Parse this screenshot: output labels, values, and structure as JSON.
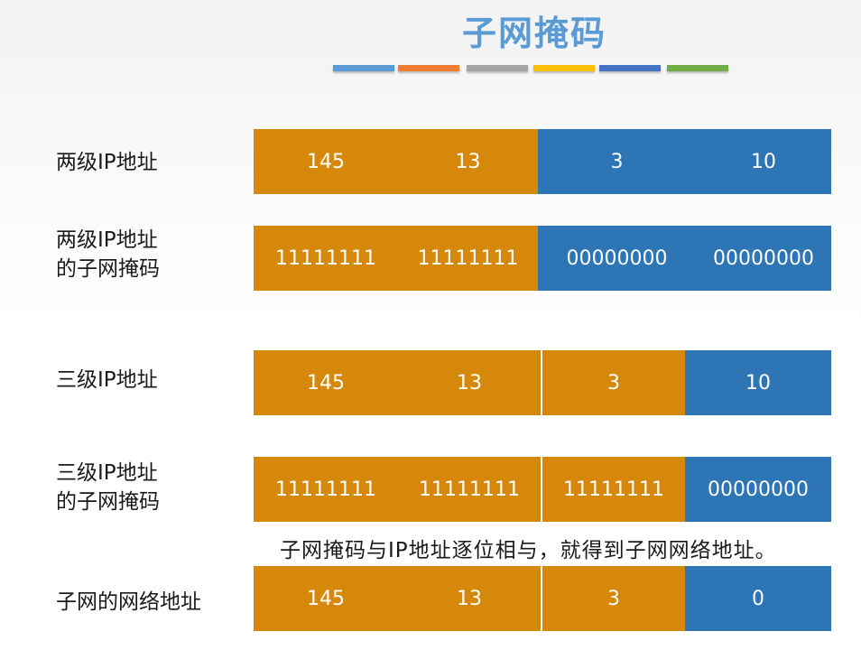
{
  "title": "子网掩码",
  "stripe_colors": [
    "#5b9bd5",
    "#ed7d31",
    "#a5a5a5",
    "#ffc000",
    "#4472c4",
    "#70ad47"
  ],
  "colors": {
    "network": "#d6880a",
    "host": "#2e75b6",
    "title": "#5b9bd5"
  },
  "rows": [
    {
      "label_lines": [
        "两级IP地址"
      ],
      "cells": [
        {
          "text": "145",
          "kind": "network"
        },
        {
          "text": "13",
          "kind": "network"
        },
        {
          "text": "3",
          "kind": "host"
        },
        {
          "text": "10",
          "kind": "host"
        }
      ]
    },
    {
      "label_lines": [
        "两级IP地址",
        "的子网掩码"
      ],
      "cells": [
        {
          "text": "11111111",
          "kind": "network"
        },
        {
          "text": "11111111",
          "kind": "network"
        },
        {
          "text": "00000000",
          "kind": "host"
        },
        {
          "text": "00000000",
          "kind": "host"
        }
      ]
    },
    {
      "label_lines": [
        "三级IP地址"
      ],
      "cells": [
        {
          "text": "145",
          "kind": "network"
        },
        {
          "text": "13",
          "kind": "network"
        },
        {
          "text": "3",
          "kind": "network"
        },
        {
          "text": "10",
          "kind": "host"
        }
      ]
    },
    {
      "label_lines": [
        "三级IP地址",
        "的子网掩码"
      ],
      "cells": [
        {
          "text": "11111111",
          "kind": "network"
        },
        {
          "text": "11111111",
          "kind": "network"
        },
        {
          "text": "11111111",
          "kind": "network"
        },
        {
          "text": "00000000",
          "kind": "host"
        }
      ]
    },
    {
      "label_lines": [
        "子网的网络地址"
      ],
      "cells": [
        {
          "text": "145",
          "kind": "network"
        },
        {
          "text": "13",
          "kind": "network"
        },
        {
          "text": "3",
          "kind": "network"
        },
        {
          "text": "0",
          "kind": "host"
        }
      ]
    }
  ],
  "note": "子网掩码与IP地址逐位相与，就得到子网网络地址。"
}
